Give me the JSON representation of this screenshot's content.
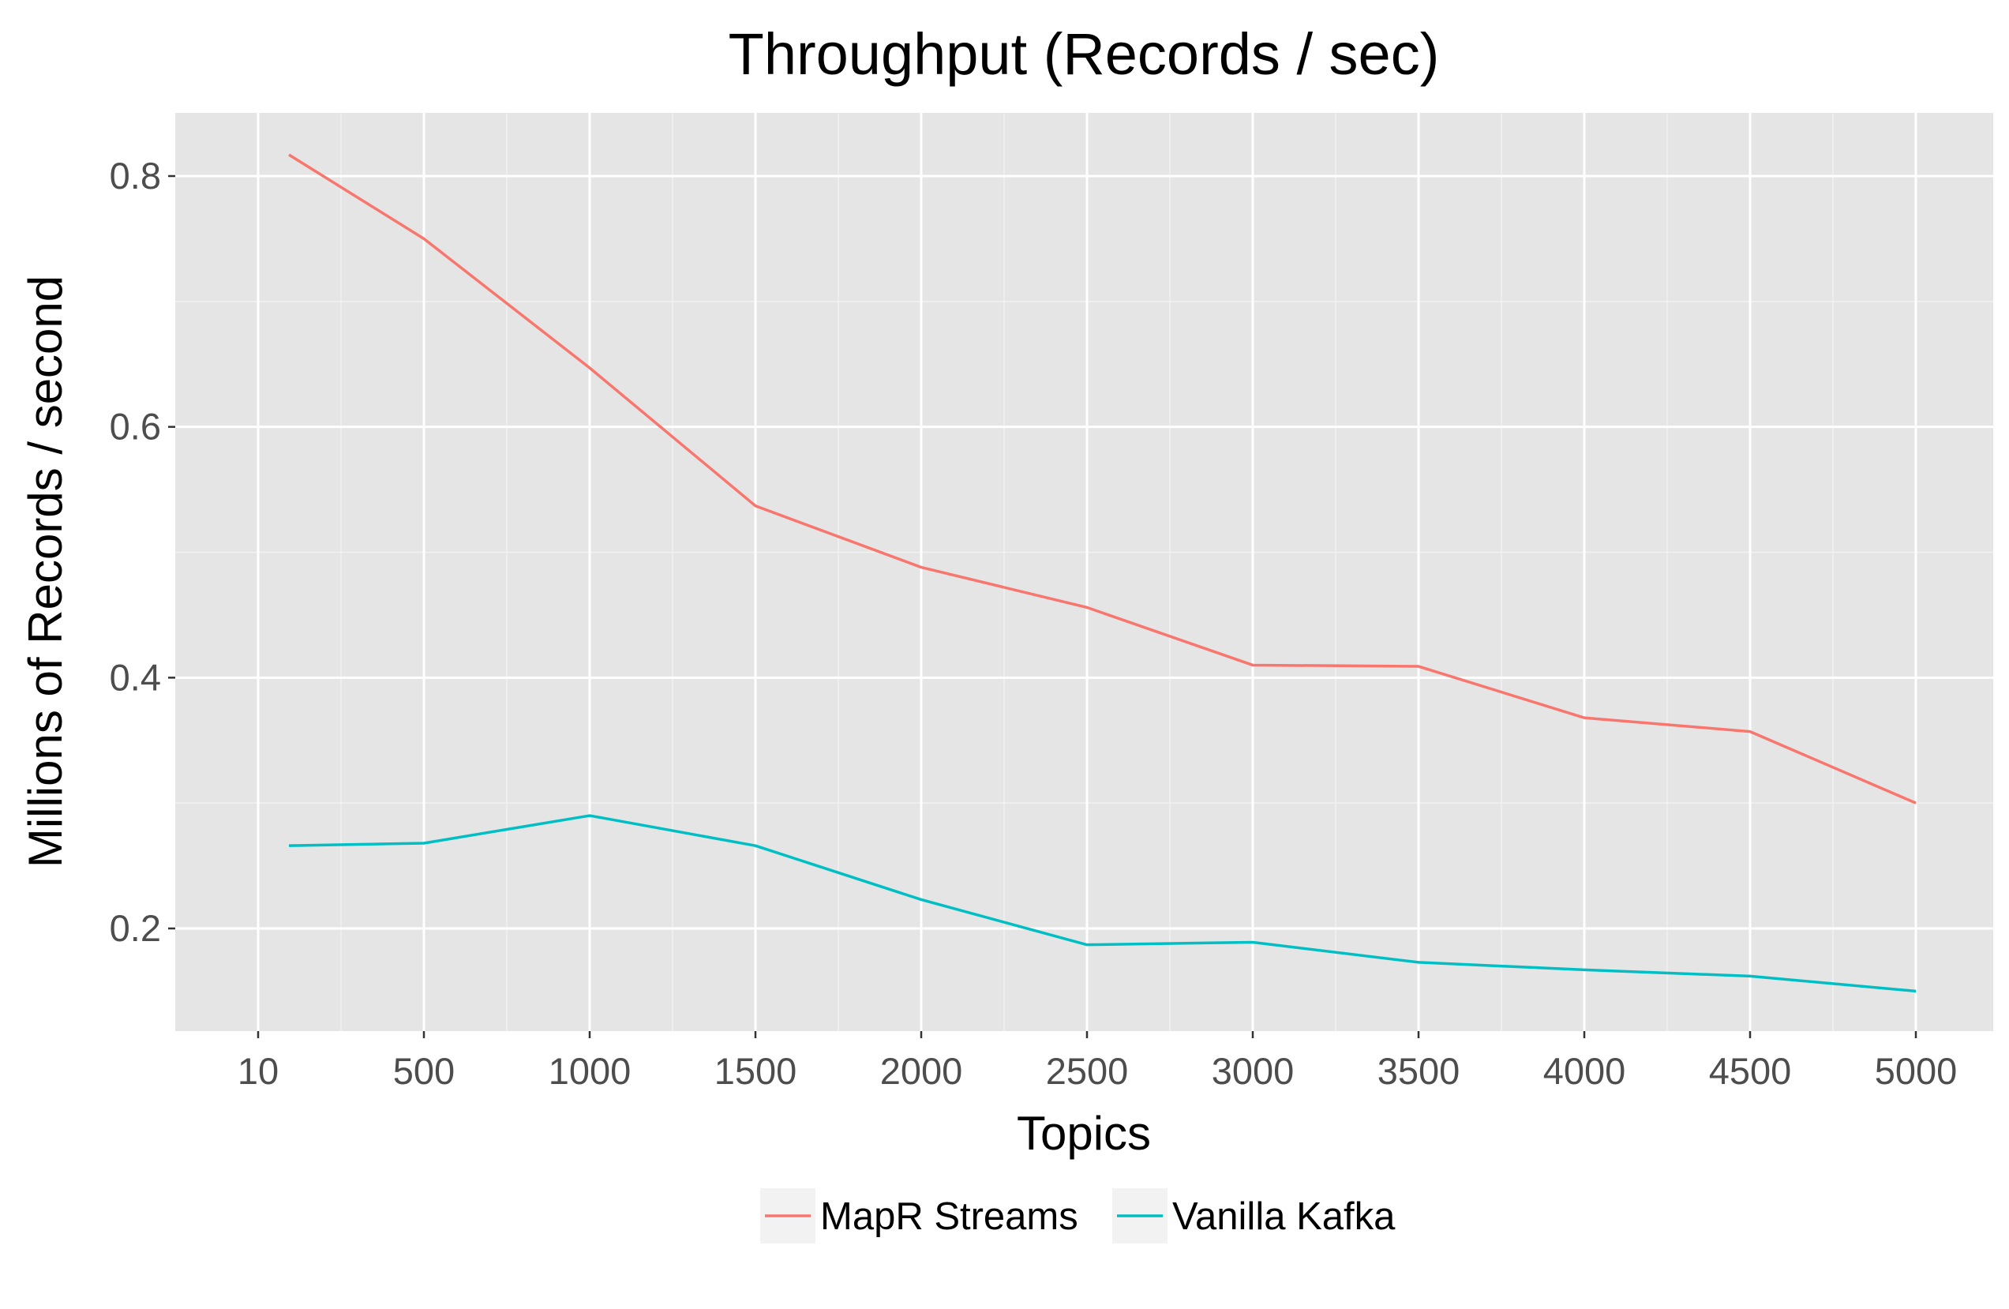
{
  "chart_data": {
    "type": "line",
    "title": "Throughput (Records / sec)",
    "xlabel": "Topics",
    "ylabel": "Millions of Records / second",
    "x_ticks": [
      10,
      500,
      1000,
      1500,
      2000,
      2500,
      3000,
      3500,
      4000,
      4500,
      5000
    ],
    "y_ticks": [
      0.2,
      0.4,
      0.6,
      0.8
    ],
    "ylim": [
      0.115,
      0.85
    ],
    "grid": true,
    "legend_position": "bottom",
    "series": [
      {
        "name": "MapR Streams",
        "color": "#F8766D",
        "x": [
          10,
          500,
          1000,
          1500,
          2000,
          2500,
          3000,
          3500,
          4000,
          4500,
          5000
        ],
        "values": [
          0.817,
          0.75,
          0.647,
          0.537,
          0.488,
          0.456,
          0.41,
          0.409,
          0.368,
          0.357,
          0.3
        ]
      },
      {
        "name": "Vanilla Kafka",
        "color": "#00BFC4",
        "x": [
          10,
          500,
          1000,
          1500,
          2000,
          2500,
          3000,
          3500,
          4000,
          4500,
          5000
        ],
        "values": [
          0.266,
          0.268,
          0.29,
          0.266,
          0.223,
          0.187,
          0.189,
          0.173,
          0.167,
          0.162,
          0.15
        ]
      }
    ]
  }
}
